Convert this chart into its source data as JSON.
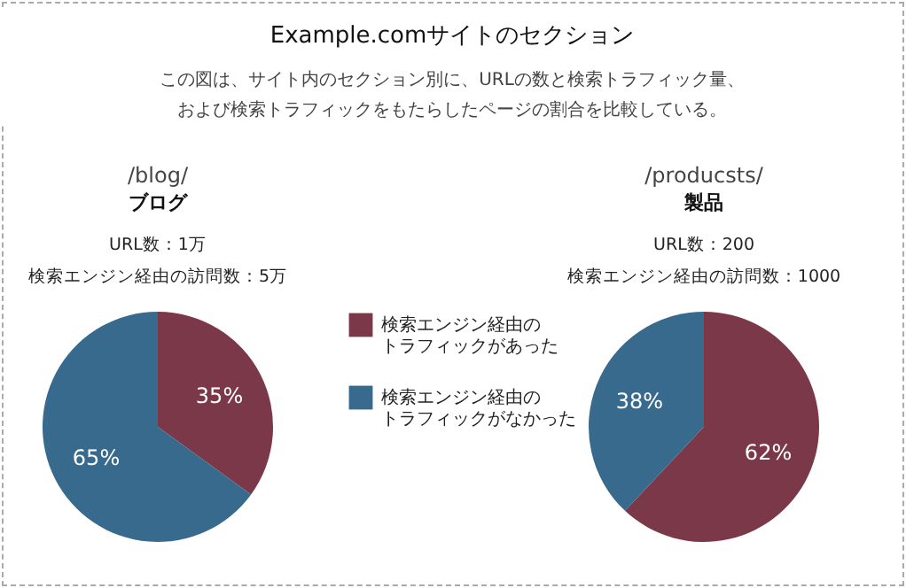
{
  "chart_data": [
    {
      "type": "other",
      "title": "Example.comサイトのセクション",
      "subtitle": "この図は、サイト内のセクション別に、URLの数と検索トラフィック量、および検索トラフィックをもたらしたページの割合を比較している。"
    },
    {
      "type": "pie",
      "title": "/blog/",
      "subtitle": "ブログ",
      "annotations": [
        "URL数：1万",
        "検索エンジン経由の訪問数：5万"
      ],
      "categories": [
        "検索エンジン経由のトラフィックがあった",
        "検索エンジン経由のトラフィックがなかった"
      ],
      "values": [
        35,
        65
      ],
      "colors": [
        "#7b3848",
        "#376a8c"
      ],
      "value_labels": [
        "35%",
        "65%"
      ],
      "legend": "right"
    },
    {
      "type": "pie",
      "title": "/producsts/",
      "subtitle": "製品",
      "annotations": [
        "URL数：200",
        "検索エンジン経由の訪問数：1000"
      ],
      "categories": [
        null,
        null
      ],
      "values": [
        62,
        38
      ],
      "colors": [
        "#7b3848",
        "#376a8c"
      ],
      "value_labels": [
        "62%",
        "38%"
      ],
      "legend": false
    }
  ]
}
